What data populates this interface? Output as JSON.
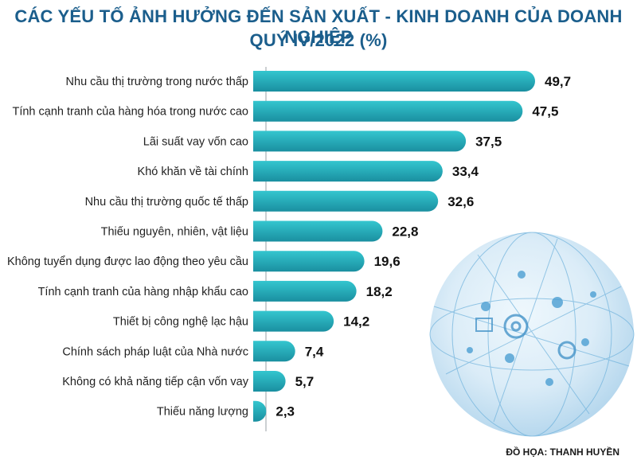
{
  "header": {
    "title_line1": "CÁC YẾU TỐ ẢNH HƯỞNG ĐẾN SẢN XUẤT - KINH DOANH CỦA DOANH NGHIỆP",
    "title_line2": "QUÝ IV/2022 (%)"
  },
  "footer": {
    "credit": "ĐỒ HỌA: THANH HUYỀN"
  },
  "colors": {
    "title": "#1b5e8c",
    "bar_top": "#2bbcc6",
    "bar_bottom": "#1a8fa0",
    "globe": "#5fa9d6"
  },
  "chart_data": {
    "type": "bar",
    "orientation": "horizontal",
    "title": "CÁC YẾU TỐ ẢNH HƯỞNG ĐẾN SẢN XUẤT - KINH DOANH CỦA DOANH NGHIỆP QUÝ IV/2022 (%)",
    "categories": [
      "Nhu cầu thị trường trong nước thấp",
      "Tính cạnh tranh của hàng hóa trong nước cao",
      "Lãi suất vay vốn cao",
      "Khó khăn về tài chính",
      "Nhu cầu thị trường quốc tế thấp",
      "Thiếu nguyên, nhiên, vật liệu",
      "Không tuyển dụng được lao động theo yêu cầu",
      "Tính cạnh tranh của hàng nhập khẩu cao",
      "Thiết bị công nghệ lạc hậu",
      "Chính sách pháp luật của Nhà nước",
      "Không có khả năng tiếp cận vốn vay",
      "Thiếu năng lượng"
    ],
    "values": [
      49.7,
      47.5,
      37.5,
      33.4,
      32.6,
      22.8,
      19.6,
      18.2,
      14.2,
      7.4,
      5.7,
      2.3
    ],
    "value_labels": [
      "49,7",
      "47,5",
      "37,5",
      "33,4",
      "32,6",
      "22,8",
      "19,6",
      "18,2",
      "14,2",
      "7,4",
      "5,7",
      "2,3"
    ],
    "xlim": [
      0,
      50
    ],
    "grid": false,
    "legend": "none"
  }
}
